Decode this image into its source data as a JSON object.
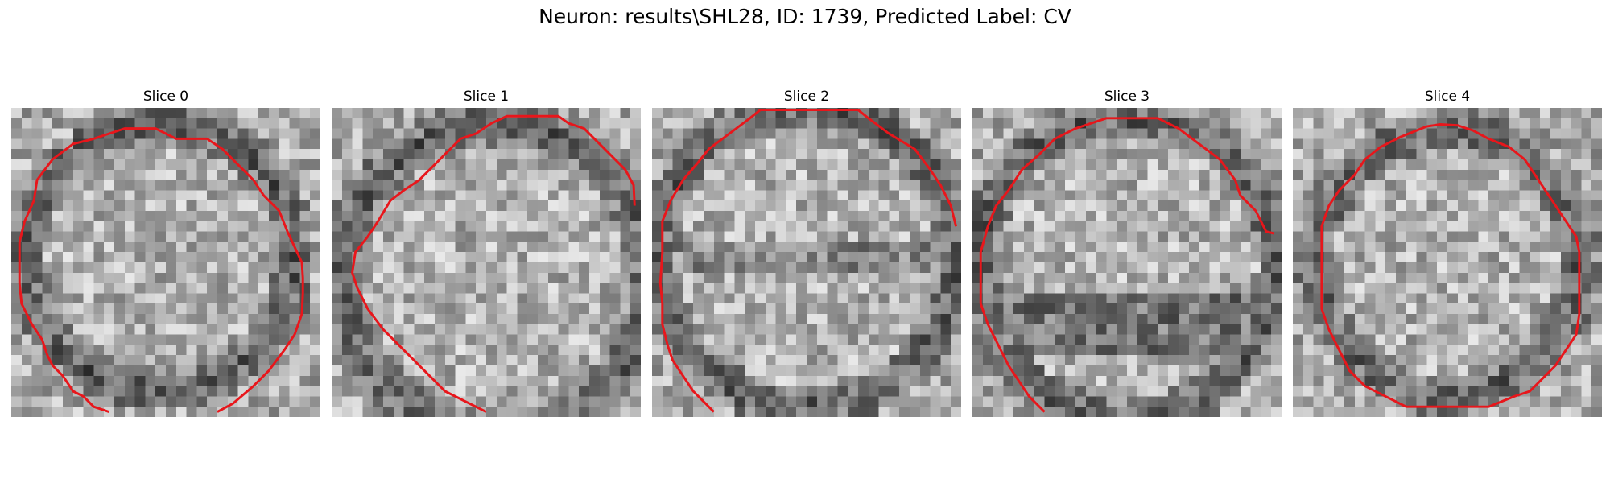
{
  "figure": {
    "title": "Neuron: results\\SHL28, ID: 1739, Predicted Label: CV",
    "contour_color": "#e8161b"
  },
  "slices": [
    {
      "title": "Slice 0"
    },
    {
      "title": "Slice 1"
    },
    {
      "title": "Slice 2"
    },
    {
      "title": "Slice 3"
    },
    {
      "title": "Slice 4"
    }
  ]
}
